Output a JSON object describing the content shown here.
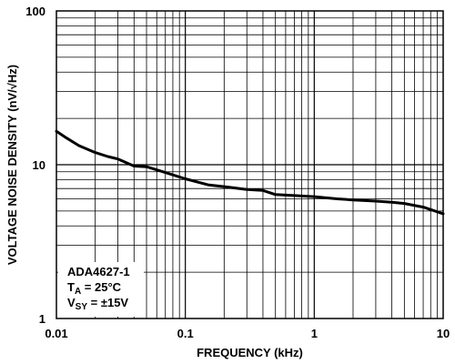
{
  "chart_data": {
    "type": "line",
    "title": "",
    "xlabel": "FREQUENCY (kHz)",
    "ylabel": "VOLTAGE NOISE DENSITY (nV/√Hz)",
    "x_scale": "log",
    "y_scale": "log",
    "xlim": [
      0.01,
      10
    ],
    "ylim": [
      1,
      100
    ],
    "x_ticks": [
      "0.01",
      "0.1",
      "1",
      "10"
    ],
    "y_ticks": [
      "1",
      "10",
      "100"
    ],
    "grid": true,
    "legend": "none",
    "series": [
      {
        "x": [
          0.01,
          0.012,
          0.015,
          0.02,
          0.025,
          0.03,
          0.04,
          0.05,
          0.07,
          0.1,
          0.15,
          0.2,
          0.3,
          0.4,
          0.5,
          0.7,
          1,
          1.5,
          2,
          3,
          4,
          5,
          7,
          10
        ],
        "y": [
          16.5,
          14.9,
          13.3,
          12.0,
          11.3,
          10.9,
          9.8,
          9.7,
          8.9,
          8.1,
          7.4,
          7.2,
          6.9,
          6.8,
          6.4,
          6.3,
          6.2,
          6.0,
          5.9,
          5.8,
          5.7,
          5.6,
          5.3,
          4.8
        ]
      }
    ],
    "annotation": {
      "device": "ADA4627-1",
      "temp_main": "T",
      "temp_sub": "A",
      "temp_rest": " = 25°C",
      "supply_main": "V",
      "supply_sub": "SY",
      "supply_rest": " = ±15V"
    },
    "line_color": "#000000",
    "grid_color": "#000000"
  }
}
